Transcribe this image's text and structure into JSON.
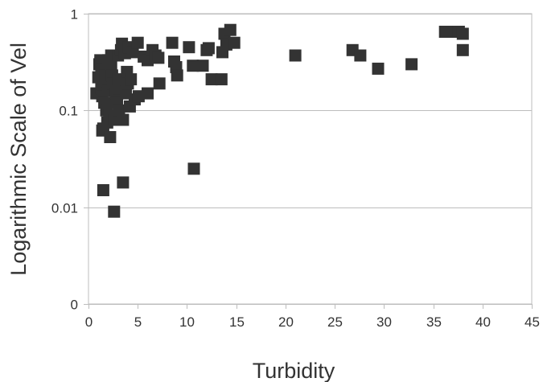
{
  "chart_data": {
    "type": "scatter",
    "title": "",
    "xlabel": "Turbidity",
    "ylabel": "Logarithmic Scale of Vel",
    "xlim": [
      0,
      45
    ],
    "ylim": [
      0.001,
      1
    ],
    "yscale": "log",
    "grid": "horizontal",
    "legend": "none",
    "marker": "square",
    "marker_color": "#333333",
    "x_ticks": [
      "0",
      "5",
      "10",
      "15",
      "20",
      "25",
      "30",
      "35",
      "40",
      "45"
    ],
    "y_ticks": [
      {
        "value": 0.001,
        "label": "0"
      },
      {
        "value": 0.01,
        "label": "0.01"
      },
      {
        "value": 0.1,
        "label": "0.1"
      },
      {
        "value": 1,
        "label": "1"
      }
    ],
    "series": [
      {
        "points": [
          [
            0.8,
            0.15
          ],
          [
            1.0,
            0.22
          ],
          [
            1.1,
            0.3
          ],
          [
            1.2,
            0.33
          ],
          [
            1.3,
            0.26
          ],
          [
            1.3,
            0.17
          ],
          [
            1.4,
            0.14
          ],
          [
            1.4,
            0.062
          ],
          [
            1.5,
            0.015
          ],
          [
            1.5,
            0.065
          ],
          [
            1.6,
            0.12
          ],
          [
            1.7,
            0.23
          ],
          [
            1.8,
            0.2
          ],
          [
            1.8,
            0.1
          ],
          [
            1.9,
            0.075
          ],
          [
            2.0,
            0.33
          ],
          [
            2.0,
            0.16
          ],
          [
            2.0,
            0.12
          ],
          [
            2.1,
            0.09
          ],
          [
            2.2,
            0.053
          ],
          [
            2.3,
            0.37
          ],
          [
            2.3,
            0.28
          ],
          [
            2.4,
            0.23
          ],
          [
            2.5,
            0.19
          ],
          [
            2.6,
            0.08
          ],
          [
            2.6,
            0.009
          ],
          [
            2.8,
            0.15
          ],
          [
            2.9,
            0.12
          ],
          [
            3.0,
            0.37
          ],
          [
            3.0,
            0.21
          ],
          [
            3.1,
            0.17
          ],
          [
            3.1,
            0.1
          ],
          [
            3.3,
            0.42
          ],
          [
            3.4,
            0.49
          ],
          [
            3.5,
            0.018
          ],
          [
            3.5,
            0.08
          ],
          [
            3.7,
            0.39
          ],
          [
            3.8,
            0.21
          ],
          [
            3.8,
            0.15
          ],
          [
            3.9,
            0.25
          ],
          [
            4.0,
            0.19
          ],
          [
            4.1,
            0.45
          ],
          [
            4.2,
            0.11
          ],
          [
            4.3,
            0.21
          ],
          [
            4.5,
            0.4
          ],
          [
            4.7,
            0.13
          ],
          [
            5.0,
            0.5
          ],
          [
            5.1,
            0.14
          ],
          [
            5.6,
            0.36
          ],
          [
            6.0,
            0.33
          ],
          [
            6.0,
            0.15
          ],
          [
            6.5,
            0.42
          ],
          [
            6.8,
            0.37
          ],
          [
            7.1,
            0.35
          ],
          [
            7.2,
            0.19
          ],
          [
            8.5,
            0.5
          ],
          [
            8.7,
            0.32
          ],
          [
            8.9,
            0.28
          ],
          [
            9.0,
            0.23
          ],
          [
            10.2,
            0.45
          ],
          [
            10.6,
            0.29
          ],
          [
            10.7,
            0.025
          ],
          [
            11.6,
            0.29
          ],
          [
            12.0,
            0.42
          ],
          [
            12.2,
            0.44
          ],
          [
            12.5,
            0.21
          ],
          [
            13.5,
            0.21
          ],
          [
            13.6,
            0.4
          ],
          [
            13.8,
            0.62
          ],
          [
            14.0,
            0.48
          ],
          [
            14.4,
            0.68
          ],
          [
            14.8,
            0.5
          ],
          [
            21.0,
            0.37
          ],
          [
            26.8,
            0.42
          ],
          [
            27.6,
            0.37
          ],
          [
            29.4,
            0.27
          ],
          [
            32.8,
            0.3
          ],
          [
            36.2,
            0.65
          ],
          [
            37.0,
            0.65
          ],
          [
            37.6,
            0.65
          ],
          [
            38.0,
            0.62
          ],
          [
            38.0,
            0.42
          ]
        ]
      }
    ]
  }
}
